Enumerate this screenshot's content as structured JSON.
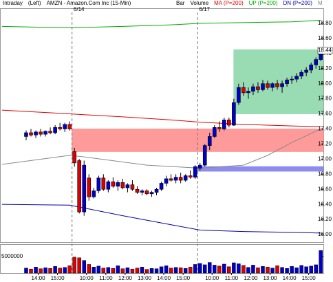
{
  "chart_data": {
    "type": "candlestick",
    "header": [
      "Intraday",
      "(Left)",
      "AMZN - Amazon.Com Inc (15-Min)"
    ],
    "categories": [
      null,
      null,
      "14:00",
      null,
      null,
      null,
      "15:00",
      null,
      null,
      null,
      null,
      null,
      "10:00",
      null,
      null,
      null,
      "11:00",
      null,
      null,
      null,
      "12:00",
      null,
      null,
      null,
      "13:00",
      null,
      null,
      null,
      "14:00",
      null,
      null,
      null,
      "15:00",
      null,
      null,
      null,
      null,
      null,
      "10:00",
      null,
      null,
      null,
      "11:00",
      null,
      null,
      null,
      "12:00",
      null,
      null,
      null,
      "13:00",
      null,
      null,
      null,
      "14:00",
      null,
      null,
      null,
      "15:00",
      null,
      null,
      null
    ],
    "sessions": [
      {
        "label": "6/14",
        "start": 10
      },
      {
        "label": "6/17",
        "start": 36
      }
    ],
    "series": [
      {
        "name": "Bar",
        "up_color": "#0000cc",
        "down_color": "#dd0000",
        "open": [
          17.3,
          17.35,
          17.32,
          17.36,
          17.33,
          17.37,
          17.35,
          17.42,
          17.4,
          17.46,
          17.1,
          16.98,
          16.3,
          16.75,
          16.5,
          16.58,
          16.75,
          16.6,
          16.7,
          16.64,
          16.69,
          16.62,
          16.66,
          16.6,
          16.56,
          16.58,
          16.54,
          16.56,
          16.6,
          16.68,
          16.74,
          16.72,
          16.76,
          16.72,
          16.78,
          16.76,
          16.88,
          16.92,
          17.18,
          17.3,
          17.42,
          17.4,
          17.52,
          17.45,
          17.75,
          17.95,
          17.88,
          17.9,
          17.96,
          17.92,
          18.0,
          17.95,
          18.0,
          17.96,
          18.0,
          18.05,
          18.06,
          18.1,
          18.15,
          18.18,
          18.25,
          18.32
        ],
        "high": [
          17.38,
          17.4,
          17.38,
          17.4,
          17.38,
          17.42,
          17.45,
          17.48,
          17.48,
          17.5,
          17.15,
          17.0,
          16.98,
          16.8,
          16.62,
          16.78,
          16.8,
          16.72,
          16.76,
          16.72,
          16.74,
          16.68,
          16.72,
          16.64,
          16.6,
          16.6,
          16.58,
          16.62,
          16.7,
          16.78,
          16.8,
          16.8,
          16.82,
          16.8,
          16.85,
          16.92,
          16.95,
          17.2,
          17.35,
          17.45,
          17.5,
          17.55,
          17.55,
          17.8,
          18.0,
          18.02,
          17.95,
          18.0,
          18.02,
          18.05,
          18.04,
          18.02,
          18.05,
          18.04,
          18.08,
          18.1,
          18.14,
          18.18,
          18.22,
          18.28,
          18.35,
          18.48
        ],
        "low": [
          17.25,
          17.3,
          17.28,
          17.3,
          17.3,
          17.33,
          17.33,
          17.38,
          17.36,
          17.38,
          16.9,
          16.28,
          16.25,
          16.45,
          16.48,
          16.55,
          16.58,
          16.56,
          16.62,
          16.58,
          16.6,
          16.56,
          16.58,
          16.54,
          16.52,
          16.52,
          16.5,
          16.52,
          16.58,
          16.64,
          16.7,
          16.68,
          16.68,
          16.7,
          16.74,
          16.74,
          16.85,
          16.9,
          17.12,
          17.28,
          17.36,
          17.38,
          17.42,
          17.44,
          17.72,
          17.84,
          17.8,
          17.85,
          17.88,
          17.9,
          17.92,
          17.9,
          17.92,
          17.88,
          17.96,
          18.0,
          18.02,
          18.06,
          18.1,
          18.14,
          18.2,
          18.3
        ],
        "close": [
          17.35,
          17.32,
          17.36,
          17.33,
          17.37,
          17.35,
          17.42,
          17.4,
          17.46,
          17.4,
          16.95,
          16.3,
          16.92,
          16.5,
          16.58,
          16.75,
          16.6,
          16.7,
          16.64,
          16.69,
          16.62,
          16.66,
          16.6,
          16.56,
          16.58,
          16.54,
          16.56,
          16.6,
          16.68,
          16.74,
          16.72,
          16.76,
          16.72,
          16.78,
          16.76,
          16.9,
          16.92,
          17.18,
          17.3,
          17.42,
          17.4,
          17.52,
          17.45,
          17.75,
          17.95,
          17.88,
          17.9,
          17.96,
          17.92,
          18.0,
          17.95,
          18.0,
          17.96,
          18.0,
          18.05,
          18.06,
          18.1,
          18.15,
          18.18,
          18.25,
          18.32,
          18.44
        ]
      },
      {
        "name": "Volume",
        "axis": "y2",
        "values": [
          1500000,
          1200000,
          1800000,
          1300000,
          1600000,
          1400000,
          2000000,
          1500000,
          1700000,
          2200000,
          4800000,
          4600000,
          3800000,
          2600000,
          1800000,
          2100000,
          1500000,
          1700000,
          1400000,
          2200000,
          1300000,
          1600000,
          1200000,
          1500000,
          1800000,
          1100000,
          1400000,
          1300000,
          1900000,
          2200000,
          1500000,
          1700000,
          1600000,
          1400000,
          1800000,
          2600000,
          2900000,
          2500000,
          3200000,
          2400000,
          2100000,
          2700000,
          1900000,
          3100000,
          2800000,
          2300000,
          1700000,
          2400000,
          1600000,
          2000000,
          1800000,
          1500000,
          2200000,
          1700000,
          1400000,
          2000000,
          1600000,
          2300000,
          1900000,
          2100000,
          2500000,
          6800000
        ]
      },
      {
        "name": "MA (P=200)",
        "color": "#dd0000",
        "x": [
          -5,
          9,
          20,
          30,
          36,
          45,
          55,
          61
        ],
        "values": [
          17.65,
          17.6,
          17.56,
          17.52,
          17.49,
          17.46,
          17.44,
          17.43
        ]
      },
      {
        "name": "UP (P=200)",
        "color": "#00aa00",
        "x": [
          -5,
          9,
          20,
          30,
          36,
          45,
          55,
          61
        ],
        "values": [
          18.76,
          18.74,
          18.76,
          18.78,
          18.8,
          18.81,
          18.82,
          18.84
        ]
      },
      {
        "name": "DN (P=200)",
        "color": "#0000aa",
        "x": [
          -5,
          9,
          20,
          30,
          36,
          45,
          55,
          61
        ],
        "values": [
          16.4,
          16.39,
          16.25,
          16.13,
          16.06,
          16.04,
          16.03,
          16.02
        ]
      },
      {
        "name": "M",
        "color": "#888888",
        "x": [
          -5,
          9,
          12,
          25,
          36,
          45,
          50,
          55,
          61
        ],
        "values": [
          16.93,
          17.05,
          17.03,
          16.92,
          16.88,
          16.92,
          17.05,
          17.22,
          17.4
        ]
      }
    ],
    "zones": [
      {
        "color": "#ff9a9a",
        "x_from": 9.5,
        "x_to": 63,
        "low": 17.1,
        "high": 17.4
      },
      {
        "color": "#8c8cee",
        "x_from": 35.5,
        "x_to": 63,
        "low": 16.84,
        "high": 16.9
      },
      {
        "color": "#99dcb4",
        "x_from": 43,
        "x_to": 61.5,
        "low": 17.6,
        "high": 18.45
      }
    ],
    "ylim": [
      15.9,
      19.0
    ],
    "yticks": [
      {
        "value": 16,
        "label": "16.00"
      },
      {
        "value": 16.2,
        "label": "16.20"
      },
      {
        "value": 16.4,
        "label": "16.40"
      },
      {
        "value": 16.6,
        "label": "16.60"
      },
      {
        "value": 16.8,
        "label": "16.80"
      },
      {
        "value": 17,
        "label": "17.00"
      },
      {
        "value": 17.2,
        "label": "17.20"
      },
      {
        "value": 17.4,
        "label": "17.40"
      },
      {
        "value": 17.6,
        "label": "17.60"
      },
      {
        "value": 17.8,
        "label": "17.80"
      },
      {
        "value": 18,
        "label": "18.00"
      },
      {
        "value": 18.2,
        "label": "18.20"
      },
      {
        "value": 18.4,
        "label": "18.40"
      },
      {
        "value": 18.6,
        "label": "18.60"
      },
      {
        "value": 18.8,
        "label": "18.80"
      }
    ],
    "y2lim": [
      0,
      8500000
    ],
    "y2ticks": [
      5000000
    ]
  }
}
